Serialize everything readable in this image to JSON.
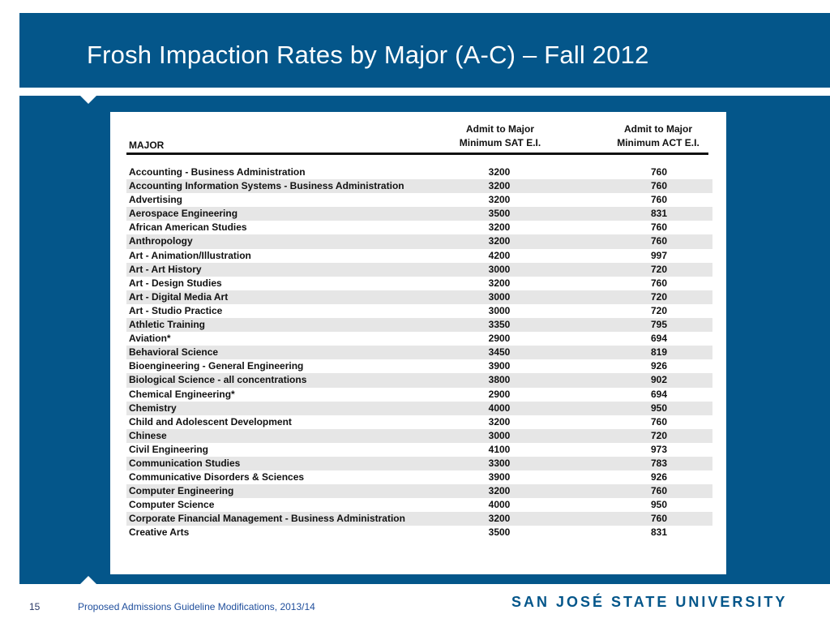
{
  "slide": {
    "title": "Frosh Impaction Rates by Major (A-C) – Fall 2012",
    "page_number": "15",
    "footer": "Proposed Admissions Guideline Modifications, 2013/14",
    "logo_text": "SAN JOSÉ STATE UNIVERSITY",
    "accent_color": "#04568a"
  },
  "table": {
    "col_major": "MAJOR",
    "col_sat_line1": "Admit to Major",
    "col_sat_line2": "Minimum SAT E.I.",
    "col_act_line1": "Admit to Major",
    "col_act_line2": "Minimum ACT E.I.",
    "rows": [
      {
        "major": "Accounting - Business Administration",
        "sat": "3200",
        "act": "760"
      },
      {
        "major": "Accounting Information Systems - Business Administration",
        "sat": "3200",
        "act": "760"
      },
      {
        "major": "Advertising",
        "sat": "3200",
        "act": "760"
      },
      {
        "major": "Aerospace Engineering",
        "sat": "3500",
        "act": "831"
      },
      {
        "major": "African American Studies",
        "sat": "3200",
        "act": "760"
      },
      {
        "major": "Anthropology",
        "sat": "3200",
        "act": "760"
      },
      {
        "major": "Art - Animation/Illustration",
        "sat": "4200",
        "act": "997"
      },
      {
        "major": "Art - Art History",
        "sat": "3000",
        "act": "720"
      },
      {
        "major": "Art - Design Studies",
        "sat": "3200",
        "act": "760"
      },
      {
        "major": "Art - Digital Media Art",
        "sat": "3000",
        "act": "720"
      },
      {
        "major": "Art - Studio Practice",
        "sat": "3000",
        "act": "720"
      },
      {
        "major": "Athletic Training",
        "sat": "3350",
        "act": "795"
      },
      {
        "major": "Aviation*",
        "sat": "2900",
        "act": "694"
      },
      {
        "major": "Behavioral Science",
        "sat": "3450",
        "act": "819"
      },
      {
        "major": "Bioengineering - General Engineering",
        "sat": "3900",
        "act": "926"
      },
      {
        "major": "Biological Science - all concentrations",
        "sat": "3800",
        "act": "902"
      },
      {
        "major": "Chemical Engineering*",
        "sat": "2900",
        "act": "694"
      },
      {
        "major": "Chemistry",
        "sat": "4000",
        "act": "950"
      },
      {
        "major": "Child and Adolescent Development",
        "sat": "3200",
        "act": "760"
      },
      {
        "major": "Chinese",
        "sat": "3000",
        "act": "720"
      },
      {
        "major": "Civil Engineering",
        "sat": "4100",
        "act": "973"
      },
      {
        "major": "Communication Studies",
        "sat": "3300",
        "act": "783"
      },
      {
        "major": "Communicative Disorders & Sciences",
        "sat": "3900",
        "act": "926"
      },
      {
        "major": "Computer Engineering",
        "sat": "3200",
        "act": "760"
      },
      {
        "major": "Computer Science",
        "sat": "4000",
        "act": "950"
      },
      {
        "major": "Corporate Financial Management - Business Administration",
        "sat": "3200",
        "act": "760"
      },
      {
        "major": "Creative Arts",
        "sat": "3500",
        "act": "831"
      }
    ]
  }
}
